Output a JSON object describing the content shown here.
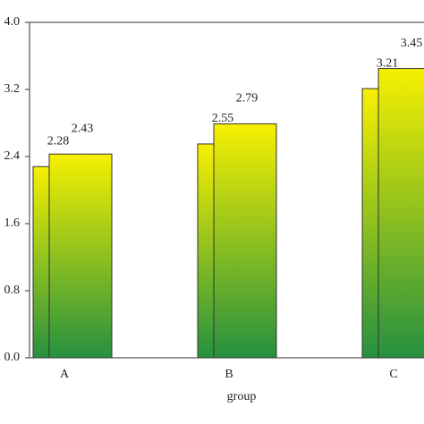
{
  "chart_data": {
    "type": "bar",
    "x_label": "group",
    "categories": [
      "A",
      "B",
      "C"
    ],
    "series": [
      {
        "values": [
          2.28,
          2.55,
          3.21
        ]
      },
      {
        "values": [
          2.43,
          2.79,
          3.45
        ]
      }
    ],
    "gradient": [
      "#f7f000",
      "#26903f"
    ],
    "ylim": [
      0,
      4
    ],
    "yticks": [
      {
        "value": 0,
        "label": "0.0"
      },
      0.8,
      1.6,
      2.4,
      3.2,
      {
        "value": 4,
        "label": "4.0"
      }
    ]
  }
}
